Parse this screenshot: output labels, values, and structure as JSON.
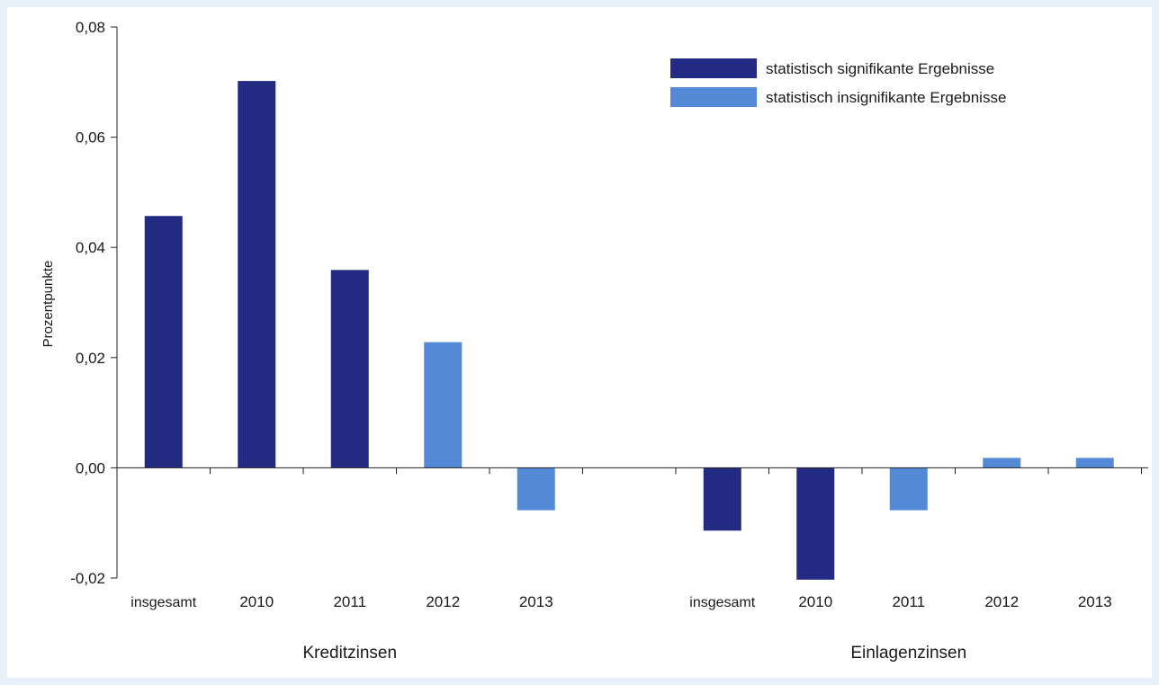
{
  "chart_data": {
    "type": "bar",
    "ylabel": "Prozentpunkte",
    "ylim": [
      -0.02,
      0.08
    ],
    "yticks": [
      0.08,
      0.06,
      0.04,
      0.02,
      0.0,
      -0.02
    ],
    "ytick_labels": [
      "0,08",
      "0,06",
      "0,04",
      "0,02",
      "0,00",
      "-0,02"
    ],
    "legend_position": "top-right",
    "legend": [
      {
        "key": "significant",
        "label": "statistisch signifikante Ergebnisse",
        "color": "#232a82"
      },
      {
        "key": "insignificant",
        "label": "statistisch insignifikante Ergebnisse",
        "color": "#5389d6"
      }
    ],
    "groups": [
      {
        "label": "Kreditzinsen",
        "bars": [
          {
            "category": "insgesamt",
            "value": 0.0457,
            "significance": "significant"
          },
          {
            "category": "2010",
            "value": 0.0702,
            "significance": "significant"
          },
          {
            "category": "2011",
            "value": 0.0359,
            "significance": "significant"
          },
          {
            "category": "2012",
            "value": 0.0228,
            "significance": "insignificant"
          },
          {
            "category": "2013",
            "value": -0.0077,
            "significance": "insignificant"
          }
        ]
      },
      {
        "label": "Einlagenzinsen",
        "bars": [
          {
            "category": "insgesamt",
            "value": -0.0114,
            "significance": "significant"
          },
          {
            "category": "2010",
            "value": -0.0203,
            "significance": "significant"
          },
          {
            "category": "2011",
            "value": -0.0077,
            "significance": "insignificant"
          },
          {
            "category": "2012",
            "value": 0.0018,
            "significance": "insignificant"
          },
          {
            "category": "2013",
            "value": 0.0018,
            "significance": "insignificant"
          }
        ]
      }
    ]
  }
}
